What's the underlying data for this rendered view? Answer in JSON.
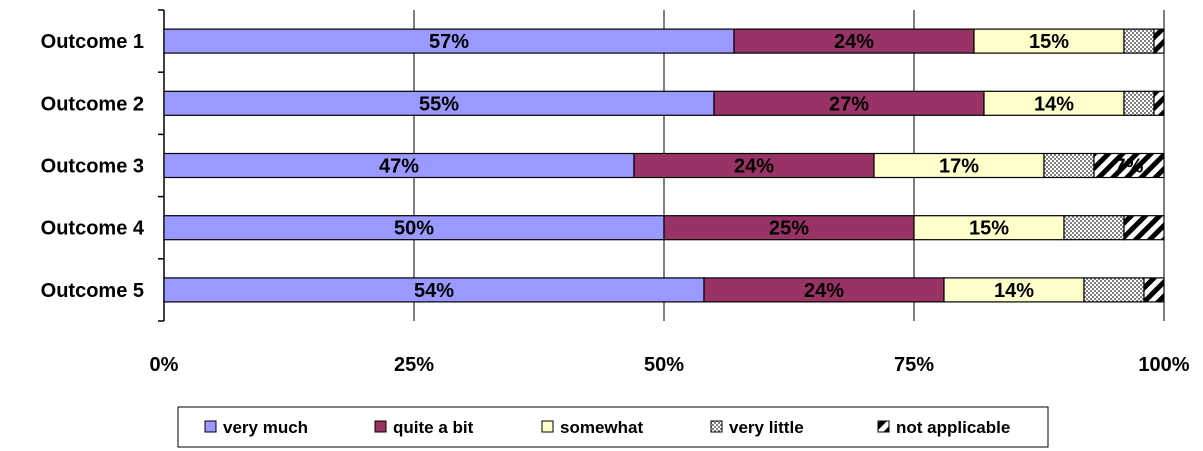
{
  "chart_data": {
    "type": "bar",
    "orientation": "horizontal",
    "stacked": true,
    "title": "",
    "xlabel": "",
    "ylabel": "",
    "xlim": [
      0,
      100
    ],
    "x_ticks": [
      "0%",
      "25%",
      "50%",
      "75%",
      "100%"
    ],
    "grid": true,
    "legend_position": "bottom",
    "categories": [
      "Outcome 1",
      "Outcome 2",
      "Outcome 3",
      "Outcome 4",
      "Outcome 5"
    ],
    "series": [
      {
        "name": "very much",
        "color": "#9999ff",
        "pattern": "solid",
        "values": [
          57,
          55,
          47,
          50,
          54
        ],
        "labels": [
          "57%",
          "55%",
          "47%",
          "50%",
          "54%"
        ]
      },
      {
        "name": "quite a bit",
        "color": "#993366",
        "pattern": "solid",
        "values": [
          24,
          27,
          24,
          25,
          24
        ],
        "labels": [
          "24%",
          "27%",
          "24%",
          "25%",
          "24%"
        ]
      },
      {
        "name": "somewhat",
        "color": "#ffffcc",
        "pattern": "solid",
        "values": [
          15,
          14,
          17,
          15,
          14
        ],
        "labels": [
          "15%",
          "14%",
          "17%",
          "15%",
          "14%"
        ]
      },
      {
        "name": "very little",
        "color": "#c0c0c0",
        "pattern": "checker",
        "values": [
          3,
          3,
          5,
          6,
          6
        ],
        "labels": [
          "",
          "",
          "",
          "",
          ""
        ]
      },
      {
        "name": "not applicable",
        "color": "#000000",
        "pattern": "diagonal",
        "values": [
          1,
          1,
          7,
          4,
          2
        ],
        "labels": [
          "",
          "",
          "7%",
          "",
          ""
        ]
      }
    ]
  }
}
